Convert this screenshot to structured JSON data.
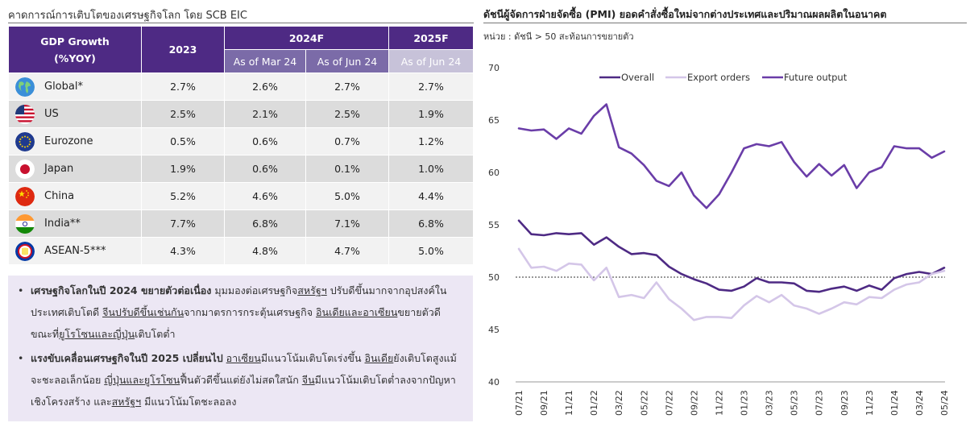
{
  "left": {
    "title": "คาดการณ์การเติบโตของเศรษฐกิจโลก โดย SCB EIC",
    "table": {
      "head_label_1": "GDP Growth",
      "head_label_2": "(%YOY)",
      "col_2023": "2023",
      "group_2024": "2024F",
      "group_2025": "2025F",
      "sub_mar24": "As of Mar 24",
      "sub_jun24": "As of Jun 24",
      "sub_jun24_2025": "As of Jun 24",
      "rows": [
        {
          "name": "Global*",
          "flag": "globe-icon",
          "v2023": "2.7%",
          "mar24": "2.6%",
          "jun24": "2.7%",
          "f2025": "2.7%"
        },
        {
          "name": "US",
          "flag": "us-flag-icon",
          "v2023": "2.5%",
          "mar24": "2.1%",
          "jun24": "2.5%",
          "f2025": "1.9%"
        },
        {
          "name": "Eurozone",
          "flag": "eu-flag-icon",
          "v2023": "0.5%",
          "mar24": "0.6%",
          "jun24": "0.7%",
          "f2025": "1.2%"
        },
        {
          "name": "Japan",
          "flag": "japan-flag-icon",
          "v2023": "1.9%",
          "mar24": "0.6%",
          "jun24": "0.1%",
          "f2025": "1.0%"
        },
        {
          "name": "China",
          "flag": "china-flag-icon",
          "v2023": "5.2%",
          "mar24": "4.6%",
          "jun24": "5.0%",
          "f2025": "4.4%"
        },
        {
          "name": "India**",
          "flag": "india-flag-icon",
          "v2023": "7.7%",
          "mar24": "6.8%",
          "jun24": "7.1%",
          "f2025": "6.8%"
        },
        {
          "name": "ASEAN-5***",
          "flag": "asean-flag-icon",
          "v2023": "4.3%",
          "mar24": "4.8%",
          "jun24": "4.7%",
          "f2025": "5.0%"
        }
      ]
    },
    "notes": {
      "n1_bold": "เศรษฐกิจโลกในปี 2024 ขยายตัวต่อเนื่อง",
      "n1_a": " มุมมองต่อเศรษฐกิจ",
      "n1_u1": "สหรัฐฯ",
      "n1_b": " ปรับดีขึ้นมากจากอุปสงค์ในประเทศเติบโตดี ",
      "n1_u2": "จีนปรับดีขึ้นเช่นกัน",
      "n1_c": "จากมาตรการกระตุ้นเศรษฐกิจ ",
      "n1_u3": "อินเดียและอาเซียน",
      "n1_d": "ขยายตัวดี ขณะที่",
      "n1_u4": "ยูโรโซนและญี่ปุ่น",
      "n1_e": "เติบโตต่ำ",
      "n2_bold": "แรงขับเคลื่อนเศรษฐกิจในปี 2025 เปลี่ยนไป",
      "n2_a": " ",
      "n2_u1": "อาเซียน",
      "n2_b": "มีแนวโน้มเติบโตเร่งขึ้น ",
      "n2_u2": "อินเดีย",
      "n2_c": "ยังเติบโตสูงแม้จะชะลอเล็กน้อย ",
      "n2_u3": "ญี่ปุ่นและยูโรโซน",
      "n2_d": "ฟื้นตัวดีขึ้นแต่ยังไม่สดใสนัก ",
      "n2_u4": "จีน",
      "n2_e": "มีแนวโน้มเติบโตต่ำลงจากปัญหาเชิงโครงสร้าง และ",
      "n2_u5": "สหรัฐฯ",
      "n2_f": " มีแนวโน้มโตชะลอลง"
    }
  },
  "right": {
    "title": "ดัชนีผู้จัดการฝ่ายจัดซื้อ (PMI) ยอดคำสั่งซื้อใหม่จากต่างประเทศและปริมาณผลผลิตในอนาคต",
    "subtitle": "หน่วย : ดัชนี > 50 สะท้อนการขยายตัว"
  },
  "chart_data": {
    "type": "line",
    "title": "ดัชนีผู้จัดการฝ่ายจัดซื้อ (PMI) ยอดคำสั่งซื้อใหม่จากต่างประเทศและปริมาณผลผลิตในอนาคต",
    "ylim": [
      40,
      70
    ],
    "yticks": [
      40,
      45,
      50,
      55,
      60,
      65,
      70
    ],
    "reference_line": 50,
    "legend_position": "top",
    "x_tick_labels": [
      "07/21",
      "09/21",
      "11/21",
      "01/22",
      "03/22",
      "05/22",
      "07/22",
      "09/22",
      "11/22",
      "01/23",
      "03/23",
      "05/23",
      "07/23",
      "09/23",
      "11/23",
      "01/24",
      "03/24",
      "05/24"
    ],
    "x": [
      "07/21",
      "08/21",
      "09/21",
      "10/21",
      "11/21",
      "12/21",
      "01/22",
      "02/22",
      "03/22",
      "04/22",
      "05/22",
      "06/22",
      "07/22",
      "08/22",
      "09/22",
      "10/22",
      "11/22",
      "12/22",
      "01/23",
      "02/23",
      "03/23",
      "04/23",
      "05/23",
      "06/23",
      "07/23",
      "08/23",
      "09/23",
      "10/23",
      "11/23",
      "12/23",
      "01/24",
      "02/24",
      "03/24",
      "04/24",
      "05/24"
    ],
    "series": [
      {
        "name": "Overall",
        "color": "#4e2a84",
        "values": [
          55.4,
          54.1,
          54.0,
          54.2,
          54.1,
          54.2,
          53.1,
          53.8,
          52.9,
          52.2,
          52.3,
          52.1,
          51.0,
          50.3,
          49.8,
          49.4,
          48.8,
          48.7,
          49.1,
          49.9,
          49.5,
          49.5,
          49.4,
          48.7,
          48.6,
          48.9,
          49.1,
          48.7,
          49.2,
          48.8,
          49.9,
          50.3,
          50.5,
          50.3,
          50.9
        ]
      },
      {
        "name": "Export orders",
        "color": "#d4c6e8",
        "values": [
          52.7,
          50.9,
          51.0,
          50.6,
          51.3,
          51.2,
          49.7,
          50.9,
          48.1,
          48.3,
          48.0,
          49.5,
          47.9,
          47.0,
          45.9,
          46.2,
          46.2,
          46.1,
          47.3,
          48.2,
          47.6,
          48.3,
          47.3,
          47.0,
          46.5,
          47.0,
          47.6,
          47.4,
          48.1,
          48.0,
          48.8,
          49.3,
          49.5,
          50.3,
          50.6
        ]
      },
      {
        "name": "Future output",
        "color": "#6a3da8",
        "values": [
          64.2,
          64.0,
          64.1,
          63.2,
          64.2,
          63.7,
          65.4,
          66.5,
          62.4,
          61.8,
          60.7,
          59.2,
          58.7,
          60.0,
          57.8,
          56.6,
          57.9,
          60.0,
          62.3,
          62.7,
          62.5,
          62.9,
          61.0,
          59.6,
          60.8,
          59.7,
          60.7,
          58.5,
          60.0,
          60.5,
          62.5,
          62.3,
          62.3,
          61.4,
          62.0
        ]
      }
    ]
  }
}
